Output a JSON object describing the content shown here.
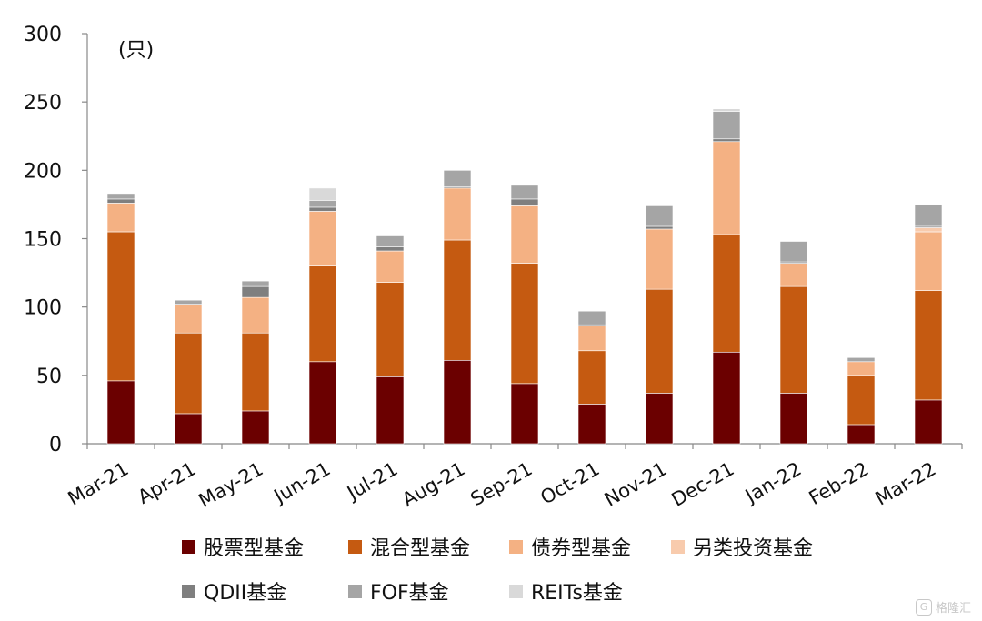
{
  "chart_data": {
    "type": "bar",
    "stacked": true,
    "unit_label": "(只)",
    "categories": [
      "Mar-21",
      "Apr-21",
      "May-21",
      "Jun-21",
      "Jul-21",
      "Aug-21",
      "Sep-21",
      "Oct-21",
      "Nov-21",
      "Dec-21",
      "Jan-22",
      "Feb-22",
      "Mar-22"
    ],
    "ylim": [
      0,
      300
    ],
    "yticks": [
      "0",
      "50",
      "100",
      "150",
      "200",
      "250",
      "300"
    ],
    "grid": false,
    "legend_position": "bottom",
    "series": [
      {
        "name": "股票型基金",
        "color": "#6b0000",
        "values": [
          46,
          22,
          24,
          60,
          49,
          61,
          44,
          29,
          37,
          67,
          37,
          14,
          32
        ]
      },
      {
        "name": "混合型基金",
        "color": "#c55a11",
        "values": [
          109,
          59,
          57,
          70,
          69,
          88,
          88,
          39,
          76,
          86,
          78,
          36,
          80
        ]
      },
      {
        "name": "债券型基金",
        "color": "#f4b183",
        "values": [
          21,
          21,
          26,
          40,
          23,
          38,
          42,
          18,
          44,
          68,
          17,
          10,
          43
        ]
      },
      {
        "name": "另类投资基金",
        "color": "#f8cbad",
        "values": [
          0,
          0,
          0,
          0,
          0,
          0,
          0,
          0,
          0,
          0,
          0,
          0,
          3
        ]
      },
      {
        "name": "QDII基金",
        "color": "#7f7f7f",
        "values": [
          3,
          0,
          8,
          3,
          3,
          1,
          5,
          1,
          2,
          2,
          1,
          0,
          1
        ]
      },
      {
        "name": "FOF基金",
        "color": "#a5a5a5",
        "values": [
          4,
          3,
          4,
          5,
          8,
          12,
          10,
          10,
          15,
          20,
          15,
          3,
          16
        ]
      },
      {
        "name": "REITs基金",
        "color": "#d9d9d9",
        "values": [
          0,
          0,
          0,
          9,
          0,
          0,
          0,
          0,
          0,
          2,
          0,
          0,
          0
        ]
      }
    ]
  },
  "watermark": {
    "text": "格隆汇",
    "logo_glyph": "G"
  }
}
